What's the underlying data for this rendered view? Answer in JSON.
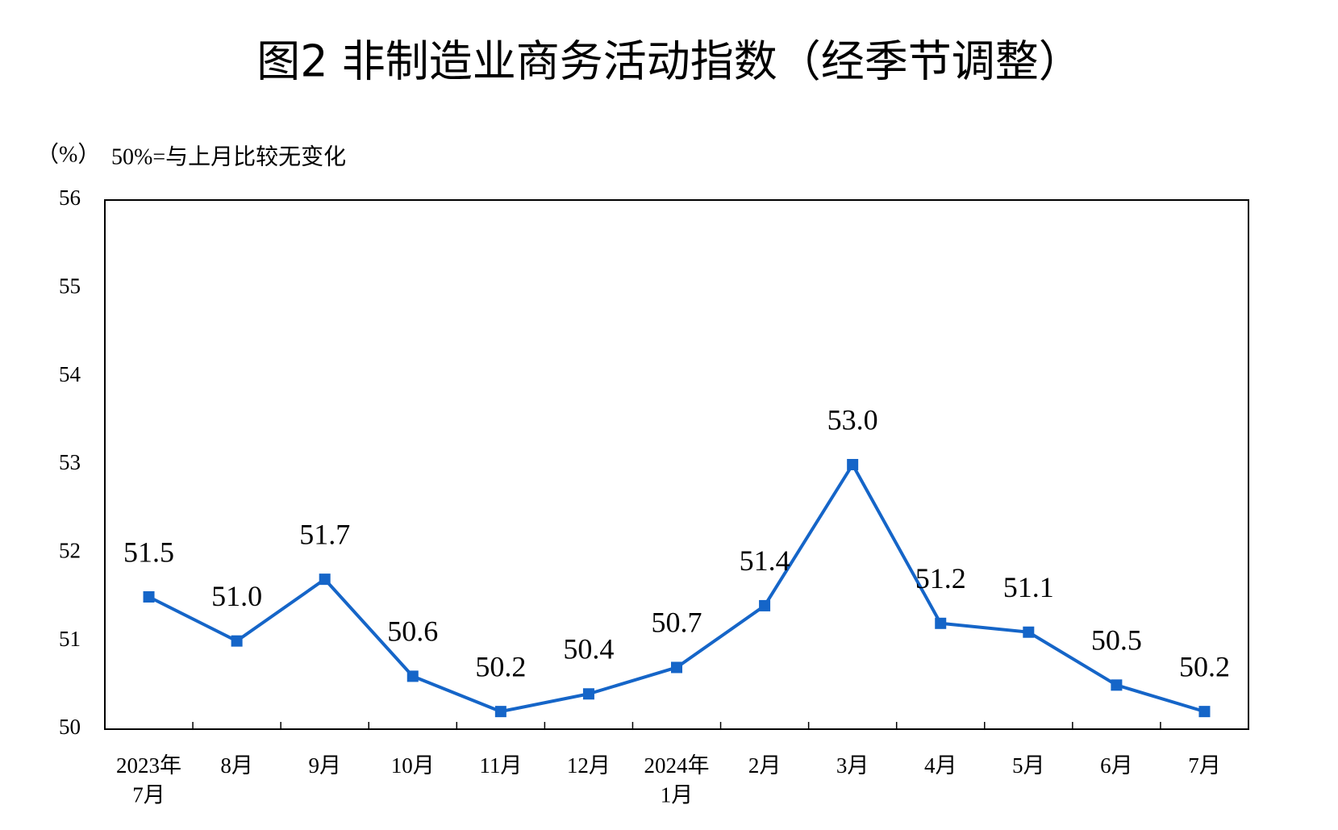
{
  "chart_data": {
    "type": "line",
    "title": "图2  非制造业商务活动指数（经季节调整）",
    "unit_label": "（%）",
    "subtitle": "50%=与上月比较无变化",
    "categories": [
      "2023年\n7月",
      "8月",
      "9月",
      "10月",
      "11月",
      "12月",
      "2024年\n1月",
      "2月",
      "3月",
      "4月",
      "5月",
      "6月",
      "7月"
    ],
    "values": [
      51.5,
      51.0,
      51.7,
      50.6,
      50.2,
      50.4,
      50.7,
      51.4,
      53.0,
      51.2,
      51.1,
      50.5,
      50.2
    ],
    "value_labels": [
      "51.5",
      "51.0",
      "51.7",
      "50.6",
      "50.2",
      "50.4",
      "50.7",
      "51.4",
      "53.0",
      "51.2",
      "51.1",
      "50.5",
      "50.2"
    ],
    "color": "#1565c8",
    "ylim": [
      50,
      56
    ],
    "yticks": [
      50,
      51,
      52,
      53,
      54,
      55,
      56
    ],
    "grid": false
  }
}
